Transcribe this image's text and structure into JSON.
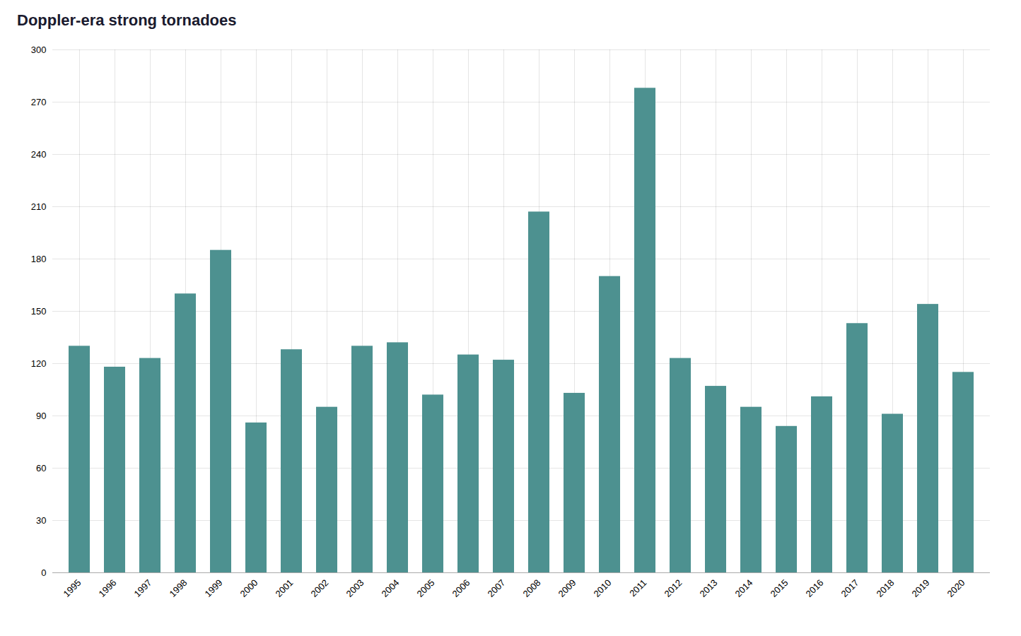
{
  "chart_data": {
    "type": "bar",
    "title": "Doppler-era strong tornadoes",
    "categories": [
      "1995",
      "1996",
      "1997",
      "1998",
      "1999",
      "2000",
      "2001",
      "2002",
      "2003",
      "2004",
      "2005",
      "2006",
      "2007",
      "2008",
      "2009",
      "2010",
      "2011",
      "2012",
      "2013",
      "2014",
      "2015",
      "2016",
      "2017",
      "2018",
      "2019",
      "2020"
    ],
    "values": [
      130,
      118,
      123,
      160,
      185,
      86,
      128,
      95,
      130,
      132,
      102,
      125,
      122,
      207,
      103,
      170,
      278,
      123,
      107,
      95,
      84,
      101,
      143,
      91,
      154,
      115
    ],
    "color": "#4d9190",
    "ylim": [
      0,
      300
    ],
    "yticks": [
      0,
      30,
      60,
      90,
      120,
      150,
      180,
      210,
      240,
      270,
      300
    ],
    "grid": true
  }
}
